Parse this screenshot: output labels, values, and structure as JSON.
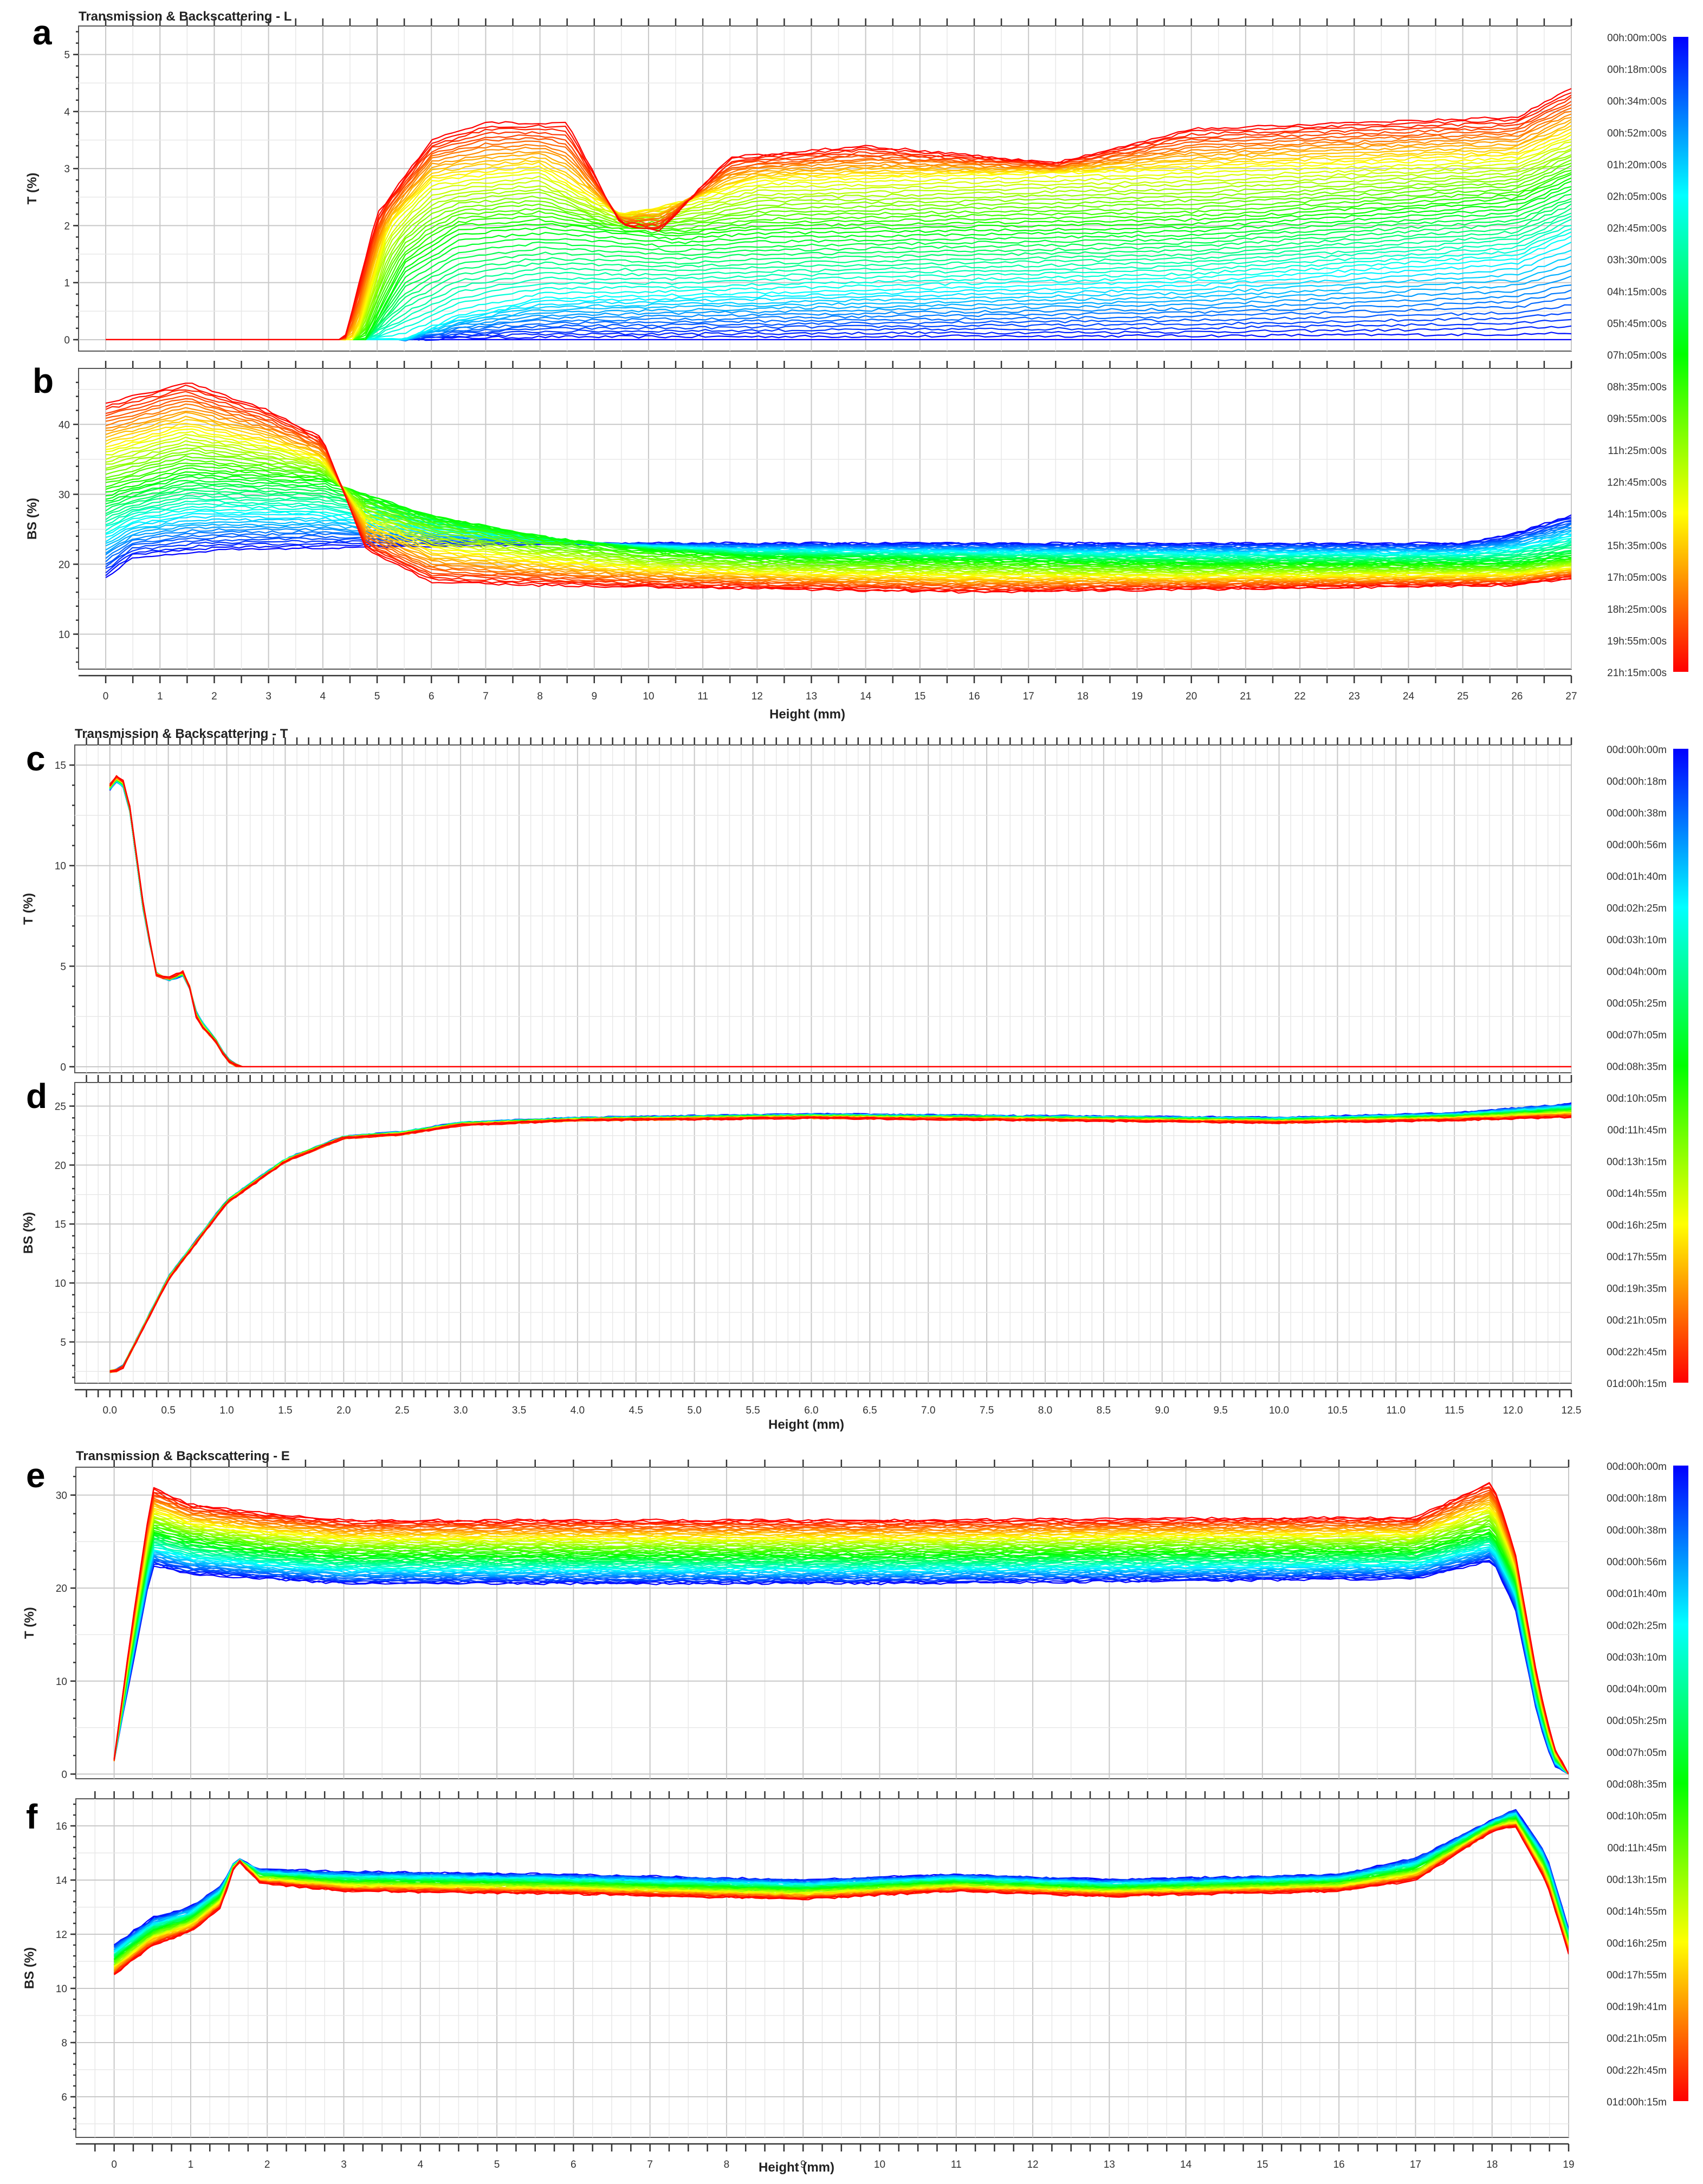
{
  "blocks": [
    {
      "title": "Transmission & Backscattering - L",
      "x_label": "Height (mm)",
      "legend_times": [
        "00h:00m:00s",
        "00h:18m:00s",
        "00h:34m:00s",
        "00h:52m:00s",
        "01h:20m:00s",
        "02h:05m:00s",
        "02h:45m:00s",
        "03h:30m:00s",
        "04h:15m:00s",
        "05h:45m:00s",
        "07h:05m:00s",
        "08h:35m:00s",
        "09h:55m:00s",
        "11h:25m:00s",
        "12h:45m:00s",
        "14h:15m:00s",
        "15h:35m:00s",
        "17h:05m:00s",
        "18h:25m:00s",
        "19h:55m:00s",
        "21h:15m:00s"
      ]
    },
    {
      "title": "Transmission & Backscattering - T",
      "x_label": "Height (mm)",
      "legend_times": [
        "00d:00h:00m",
        "00d:00h:18m",
        "00d:00h:38m",
        "00d:00h:56m",
        "00d:01h:40m",
        "00d:02h:25m",
        "00d:03h:10m",
        "00d:04h:00m",
        "00d:05h:25m",
        "00d:07h:05m",
        "00d:08h:35m",
        "00d:10h:05m",
        "00d:11h:45m",
        "00d:13h:15m",
        "00d:14h:55m",
        "00d:16h:25m",
        "00d:17h:55m",
        "00d:19h:35m",
        "00d:21h:05m",
        "00d:22h:45m",
        "01d:00h:15m"
      ]
    },
    {
      "title": "Transmission & Backscattering - E",
      "x_label": "Height (mm)",
      "legend_times": [
        "00d:00h:00m",
        "00d:00h:18m",
        "00d:00h:38m",
        "00d:00h:56m",
        "00d:01h:40m",
        "00d:02h:25m",
        "00d:03h:10m",
        "00d:04h:00m",
        "00d:05h:25m",
        "00d:07h:05m",
        "00d:08h:35m",
        "00d:10h:05m",
        "00d:11h:45m",
        "00d:13h:15m",
        "00d:14h:55m",
        "00d:16h:25m",
        "00d:17h:55m",
        "00d:19h:41m",
        "00d:21h:05m",
        "00d:22h:45m",
        "01d:00h:15m"
      ]
    }
  ],
  "chart_data": [
    {
      "panel": "a",
      "type": "line",
      "ylabel": "T (%)",
      "xlim": [
        -0.5,
        27
      ],
      "ylim": [
        -0.2,
        5.5
      ],
      "x_ticks": [
        0,
        1,
        2,
        3,
        4,
        5,
        6,
        7,
        8,
        9,
        10,
        11,
        12,
        13,
        14,
        15,
        16,
        17,
        18,
        19,
        20,
        21,
        22,
        23,
        24,
        25,
        26,
        27
      ],
      "y_ticks": [
        0,
        1,
        2,
        3,
        4,
        5
      ],
      "time_series": [
        {
          "time": "00h:00m:00s",
          "x": [
            0,
            27
          ],
          "y": [
            0,
            0
          ]
        },
        {
          "time": "01h:20m:00s",
          "x": [
            0,
            5.5,
            6.5,
            8,
            12,
            20,
            26,
            27
          ],
          "y": [
            0,
            0,
            0.4,
            0.7,
            0.8,
            1.0,
            1.4,
            1.8
          ]
        },
        {
          "time": "03h:30m:00s",
          "x": [
            0,
            4.8,
            5.5,
            6.5,
            8,
            9.5,
            10.5,
            12,
            20,
            26,
            27
          ],
          "y": [
            0,
            0,
            1.3,
            1.9,
            2.0,
            1.9,
            1.8,
            1.9,
            2.0,
            2.4,
            2.8
          ]
        },
        {
          "time": "07h:05m:00s",
          "x": [
            0,
            4.6,
            5.2,
            6,
            8,
            9.5,
            10.5,
            12,
            20,
            26,
            27
          ],
          "y": [
            0,
            0,
            2.0,
            2.8,
            3.0,
            2.2,
            2.4,
            2.8,
            3.0,
            3.2,
            3.6
          ]
        },
        {
          "time": "21h:15m:00s",
          "x": [
            0,
            4.4,
            5,
            6,
            7,
            8.5,
            9.5,
            10.2,
            11.5,
            14,
            17.5,
            20,
            26,
            27
          ],
          "y": [
            0,
            0,
            2.2,
            3.5,
            3.8,
            3.8,
            2.0,
            1.9,
            3.2,
            3.4,
            3.1,
            3.7,
            3.9,
            4.4
          ]
        }
      ]
    },
    {
      "panel": "b",
      "type": "line",
      "ylabel": "BS (%)",
      "xlim": [
        -0.5,
        27
      ],
      "ylim": [
        5,
        48
      ],
      "x_ticks": [
        0,
        1,
        2,
        3,
        4,
        5,
        6,
        7,
        8,
        9,
        10,
        11,
        12,
        13,
        14,
        15,
        16,
        17,
        18,
        19,
        20,
        21,
        22,
        23,
        24,
        25,
        26,
        27
      ],
      "y_ticks": [
        10,
        20,
        30,
        40
      ],
      "time_series": [
        {
          "time": "00h:00m:00s",
          "x": [
            0,
            0.5,
            2,
            5,
            10,
            20,
            25,
            26,
            27
          ],
          "y": [
            18,
            21,
            22,
            22.5,
            23,
            23,
            23,
            24.5,
            27
          ]
        },
        {
          "time": "07h:05m:00s",
          "x": [
            0,
            1.5,
            4,
            6,
            8,
            10,
            12,
            20,
            26,
            27
          ],
          "y": [
            30,
            33,
            32,
            27,
            24,
            22,
            21,
            20,
            20,
            21
          ]
        },
        {
          "time": "21h:15m:00s",
          "x": [
            0,
            1.5,
            3,
            4,
            4.8,
            6,
            8,
            12,
            16,
            26,
            27
          ],
          "y": [
            43,
            46,
            42,
            38,
            22,
            17.5,
            17,
            16.5,
            16,
            17,
            18
          ]
        }
      ]
    },
    {
      "panel": "c",
      "type": "line",
      "ylabel": "T (%)",
      "xlim": [
        -0.3,
        12.5
      ],
      "ylim": [
        -0.3,
        16
      ],
      "x_ticks": [
        0,
        0.5,
        1,
        1.5,
        2,
        2.5,
        3,
        3.5,
        4,
        4.5,
        5,
        5.5,
        6,
        6.5,
        7,
        7.5,
        8,
        8.5,
        9,
        9.5,
        10,
        10.5,
        11,
        11.5,
        12,
        12.5
      ],
      "y_ticks": [
        0,
        5,
        10,
        15
      ],
      "time_series": [
        {
          "time": "00d:00h:00m",
          "x": [
            0,
            0.07,
            0.15,
            0.3,
            0.4,
            0.5,
            0.65,
            0.75,
            0.9,
            1.0,
            1.1,
            12.5
          ],
          "y": [
            13.8,
            14.3,
            13.6,
            7.2,
            4.6,
            4.3,
            4.6,
            2.5,
            1.4,
            0.4,
            0,
            0
          ]
        },
        {
          "time": "01d:00h:15m",
          "x": [
            0,
            0.08,
            0.15,
            0.3,
            0.4,
            0.5,
            0.65,
            0.75,
            0.9,
            1.0,
            1.1,
            12.5
          ],
          "y": [
            14.0,
            14.6,
            13.8,
            7.5,
            4.5,
            4.4,
            4.8,
            2.2,
            1.3,
            0.3,
            0,
            0
          ]
        }
      ]
    },
    {
      "panel": "d",
      "type": "line",
      "ylabel": "BS (%)",
      "xlim": [
        -0.3,
        12.5
      ],
      "ylim": [
        1.5,
        27
      ],
      "x_ticks": [
        0,
        0.5,
        1,
        1.5,
        2,
        2.5,
        3,
        3.5,
        4,
        4.5,
        5,
        5.5,
        6,
        6.5,
        7,
        7.5,
        8,
        8.5,
        9,
        9.5,
        10,
        10.5,
        11,
        11.5,
        12,
        12.5
      ],
      "y_ticks": [
        5,
        10,
        15,
        20,
        25
      ],
      "time_series": [
        {
          "time": "00d:00h:00m",
          "x": [
            0,
            0.1,
            0.5,
            1,
            1.5,
            2,
            2.5,
            3,
            4,
            6,
            10,
            11.5,
            12.5
          ],
          "y": [
            2.5,
            2.7,
            10.5,
            17,
            20.5,
            22.4,
            22.8,
            23.6,
            24.0,
            24.3,
            24.0,
            24.4,
            25.2
          ]
        },
        {
          "time": "01d:00h:15m",
          "x": [
            0,
            0.1,
            0.5,
            1,
            1.5,
            2,
            2.5,
            3,
            4,
            6,
            10,
            11.5,
            12.5
          ],
          "y": [
            2.5,
            2.6,
            10.3,
            16.8,
            20.3,
            22.3,
            22.6,
            23.4,
            23.8,
            24.0,
            23.6,
            23.8,
            24.1
          ]
        }
      ]
    },
    {
      "panel": "e",
      "type": "line",
      "ylabel": "T (%)",
      "xlim": [
        -0.5,
        19
      ],
      "ylim": [
        -0.5,
        33
      ],
      "x_ticks": [
        0,
        1,
        2,
        3,
        4,
        5,
        6,
        7,
        8,
        9,
        10,
        11,
        12,
        13,
        14,
        15,
        16,
        17,
        18,
        19
      ],
      "y_ticks": [
        0,
        10,
        20,
        30
      ],
      "time_series": [
        {
          "time": "00d:00h:00m",
          "x": [
            0,
            0.2,
            0.5,
            1,
            2,
            3,
            10,
            17,
            18,
            18.3,
            18.6,
            18.8,
            19
          ],
          "y": [
            1.5,
            10,
            22.5,
            21.5,
            21,
            20.5,
            20.5,
            21,
            23,
            18,
            6,
            1,
            0
          ]
        },
        {
          "time": "00d:10h:05m",
          "x": [
            0,
            0.2,
            0.5,
            1,
            2,
            3,
            10,
            17,
            18,
            18.3,
            18.6,
            18.8,
            19
          ],
          "y": [
            1.5,
            12,
            26,
            25,
            24,
            23.5,
            23.5,
            24,
            26,
            21,
            8,
            2,
            0
          ]
        },
        {
          "time": "01d:00h:15m",
          "x": [
            0,
            0.2,
            0.5,
            1,
            2,
            3,
            10,
            17,
            18,
            18.3,
            18.6,
            18.8,
            19
          ],
          "y": [
            1.5,
            14,
            30.8,
            29,
            28,
            27.3,
            27.3,
            27.6,
            31.5,
            24,
            10,
            3,
            0
          ]
        }
      ]
    },
    {
      "panel": "f",
      "type": "line",
      "ylabel": "BS (%)",
      "xlim": [
        -0.5,
        19
      ],
      "ylim": [
        4.5,
        17
      ],
      "x_ticks": [
        0,
        1,
        2,
        3,
        4,
        5,
        6,
        7,
        8,
        9,
        10,
        11,
        12,
        13,
        14,
        15,
        16,
        17,
        18,
        19
      ],
      "y_ticks": [
        6,
        8,
        10,
        12,
        14,
        16
      ],
      "time_series": [
        {
          "time": "00d:00h:00m",
          "x": [
            0,
            0.5,
            1,
            1.4,
            1.6,
            1.9,
            3,
            6,
            9,
            11,
            13,
            16,
            17,
            18,
            18.3,
            18.7,
            19
          ],
          "y": [
            11.6,
            12.6,
            13,
            13.8,
            14.8,
            14.4,
            14.3,
            14.2,
            14.0,
            14.2,
            14.0,
            14.2,
            14.8,
            16.2,
            16.6,
            15,
            12.2
          ]
        },
        {
          "time": "01d:00h:15m",
          "x": [
            0,
            0.5,
            1,
            1.4,
            1.6,
            1.9,
            3,
            6,
            9,
            11,
            13,
            16,
            17,
            18,
            18.3,
            18.7,
            19
          ],
          "y": [
            10.5,
            11.6,
            12.1,
            13,
            14.8,
            13.9,
            13.6,
            13.5,
            13.3,
            13.6,
            13.4,
            13.6,
            14,
            15.8,
            16,
            14,
            11.3
          ]
        }
      ]
    }
  ]
}
